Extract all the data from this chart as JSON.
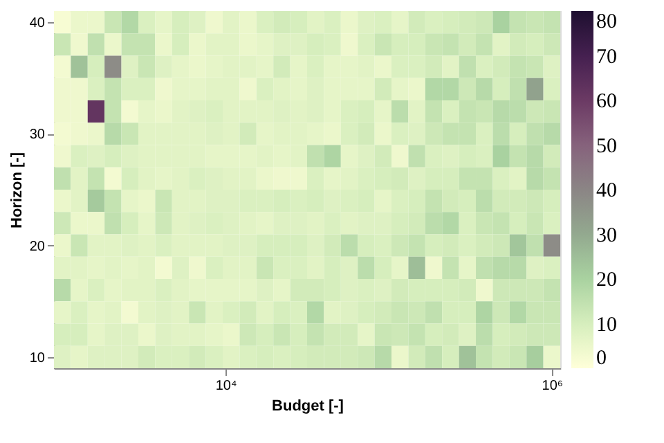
{
  "chart_data": {
    "type": "heatmap",
    "xlabel": "Budget [-]",
    "ylabel": "Horizon [-]",
    "log": "x",
    "x": [
      1000,
      1269,
      1610,
      2043,
      2593,
      3290,
      4175,
      5298,
      6723,
      8532,
      10826,
      13738,
      17433,
      22122,
      28072,
      35622,
      45204,
      57362,
      72790,
      92367,
      117210,
      148735,
      188739,
      239503,
      303920,
      385662,
      489390,
      621017,
      788046,
      1000000
    ],
    "y": [
      40,
      38,
      36,
      34,
      32,
      30,
      28,
      26,
      24,
      22,
      20,
      18,
      16,
      14,
      12,
      10
    ],
    "xlim": [
      888,
      1126000
    ],
    "ylim": [
      9,
      41
    ],
    "xticks": [
      {
        "value": 10000,
        "label": "10⁴"
      },
      {
        "value": 1000000,
        "label": "10⁶"
      }
    ],
    "yticks": [
      10,
      20,
      30,
      40
    ],
    "clim": [
      0,
      80
    ],
    "cticks": [
      0,
      10,
      20,
      30,
      40,
      50,
      60,
      70,
      80
    ],
    "cells": [
      [
        2,
        5,
        5,
        13,
        18,
        9,
        6,
        10,
        8,
        4,
        7,
        5,
        9,
        11,
        10,
        7,
        9,
        5,
        8,
        9,
        6,
        11,
        9,
        10,
        11,
        12,
        20,
        14,
        13,
        14
      ],
      [
        13,
        4,
        15,
        5,
        14,
        14,
        5,
        10,
        5,
        7,
        7,
        5,
        6,
        8,
        8,
        10,
        9,
        4,
        9,
        13,
        10,
        10,
        13,
        14,
        11,
        14,
        7,
        11,
        10,
        12
      ],
      [
        3,
        24,
        10,
        38,
        8,
        13,
        8,
        6,
        5,
        6,
        7,
        7,
        6,
        11,
        6,
        9,
        6,
        6,
        7,
        5,
        9,
        9,
        11,
        7,
        15,
        9,
        11,
        14,
        13,
        8
      ],
      [
        4,
        4,
        9,
        14,
        9,
        9,
        4,
        6,
        6,
        7,
        7,
        4,
        9,
        7,
        6,
        8,
        6,
        6,
        6,
        11,
        6,
        5,
        18,
        18,
        12,
        17,
        10,
        15,
        32,
        9
      ],
      [
        4,
        4,
        62,
        14,
        3,
        6,
        5,
        7,
        8,
        9,
        7,
        7,
        7,
        8,
        7,
        8,
        6,
        9,
        10,
        6,
        16,
        7,
        14,
        9,
        14,
        13,
        17,
        16,
        12,
        13
      ],
      [
        3,
        4,
        5,
        17,
        13,
        7,
        7,
        7,
        7,
        8,
        7,
        11,
        6,
        7,
        7,
        6,
        5,
        9,
        11,
        5,
        9,
        8,
        12,
        14,
        14,
        9,
        16,
        10,
        15,
        17
      ],
      [
        4,
        9,
        8,
        10,
        8,
        7,
        7,
        7,
        7,
        6,
        6,
        6,
        7,
        6,
        7,
        15,
        19,
        6,
        8,
        11,
        4,
        15,
        9,
        8,
        10,
        9,
        20,
        14,
        17,
        11
      ],
      [
        15,
        7,
        14,
        3,
        10,
        7,
        6,
        7,
        9,
        8,
        7,
        7,
        5,
        4,
        4,
        9,
        6,
        7,
        9,
        10,
        11,
        8,
        10,
        10,
        14,
        14,
        9,
        7,
        17,
        14
      ],
      [
        5,
        7,
        22,
        14,
        6,
        5,
        13,
        7,
        7,
        8,
        8,
        9,
        9,
        10,
        9,
        10,
        8,
        9,
        10,
        6,
        9,
        10,
        14,
        11,
        10,
        16,
        11,
        11,
        12,
        10
      ],
      [
        12,
        5,
        5,
        15,
        10,
        6,
        12,
        7,
        8,
        9,
        8,
        7,
        6,
        8,
        8,
        7,
        9,
        7,
        8,
        8,
        10,
        11,
        16,
        18,
        9,
        13,
        14,
        10,
        13,
        9
      ],
      [
        5,
        13,
        7,
        7,
        8,
        7,
        9,
        7,
        7,
        7,
        8,
        8,
        10,
        10,
        10,
        8,
        11,
        16,
        10,
        9,
        12,
        14,
        10,
        11,
        9,
        11,
        12,
        23,
        15,
        38
      ],
      [
        7,
        7,
        6,
        7,
        6,
        7,
        3,
        8,
        4,
        9,
        7,
        7,
        13,
        9,
        9,
        7,
        10,
        8,
        16,
        10,
        6,
        25,
        4,
        14,
        6,
        15,
        17,
        17,
        8,
        9
      ],
      [
        17,
        6,
        9,
        6,
        7,
        7,
        9,
        7,
        6,
        6,
        6,
        6,
        8,
        6,
        11,
        11,
        10,
        8,
        9,
        8,
        11,
        10,
        10,
        10,
        11,
        4,
        12,
        12,
        12,
        14
      ],
      [
        6,
        9,
        6,
        7,
        3,
        7,
        8,
        7,
        13,
        7,
        9,
        11,
        7,
        10,
        9,
        18,
        7,
        8,
        10,
        11,
        13,
        12,
        15,
        10,
        10,
        19,
        12,
        18,
        13,
        13
      ],
      [
        10,
        10,
        6,
        8,
        8,
        5,
        8,
        7,
        7,
        6,
        5,
        12,
        10,
        13,
        10,
        14,
        11,
        11,
        6,
        13,
        12,
        14,
        10,
        11,
        8,
        16,
        10,
        11,
        12,
        12
      ],
      [
        8,
        6,
        8,
        8,
        8,
        11,
        9,
        9,
        11,
        9,
        7,
        9,
        10,
        9,
        10,
        11,
        11,
        11,
        12,
        17,
        5,
        11,
        15,
        10,
        24,
        14,
        11,
        13,
        21,
        5
      ]
    ]
  }
}
